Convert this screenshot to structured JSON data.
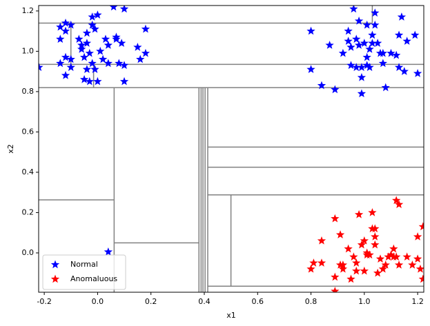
{
  "chart_data": {
    "type": "scatter",
    "xlabel": "x1",
    "ylabel": "x2",
    "xlim": [
      -0.221,
      1.223
    ],
    "ylim": [
      -0.195,
      1.227
    ],
    "xticks": [
      -0.2,
      {
        "value": 0,
        "label": "0.0"
      },
      0.2,
      0.4,
      0.6,
      0.8,
      {
        "value": 1,
        "label": "1.0"
      },
      1.2
    ],
    "yticks": [
      {
        "value": 0,
        "label": "0.0"
      },
      0.2,
      0.4,
      0.6,
      0.8,
      {
        "value": 1,
        "label": "1.0"
      },
      1.2
    ],
    "legend": "lower left",
    "series": [
      {
        "name": "Normal",
        "color": "#0000ff",
        "x": [
          -0.22,
          -0.14,
          -0.12,
          -0.12,
          -0.1,
          -0.14,
          -0.14,
          -0.12,
          -0.1,
          -0.1,
          -0.12,
          -0.07,
          -0.06,
          -0.06,
          -0.05,
          -0.04,
          -0.04,
          -0.03,
          -0.04,
          -0.05,
          -0.03,
          -0.02,
          -0.02,
          -0.01,
          0.0,
          -0.02,
          -0.01,
          0.0,
          0.01,
          0.02,
          0.03,
          0.04,
          0.04,
          0.06,
          0.07,
          0.07,
          0.1,
          0.09,
          0.08,
          0.1,
          0.1,
          0.18,
          0.18,
          0.15,
          0.16,
          0.04,
          0.8,
          0.8,
          0.84,
          0.87,
          0.89,
          0.92,
          0.94,
          0.94,
          0.95,
          0.95,
          0.96,
          0.97,
          0.97,
          0.98,
          0.98,
          0.99,
          0.99,
          0.99,
          1.0,
          1.01,
          1.01,
          1.01,
          1.02,
          1.02,
          1.03,
          1.03,
          1.04,
          1.05,
          1.06,
          1.07,
          1.07,
          1.08,
          1.1,
          1.12,
          1.13,
          1.13,
          1.14,
          1.15,
          1.16,
          1.19,
          1.2,
          1.04
        ],
        "values": [
          0.92,
          1.12,
          1.14,
          1.1,
          1.13,
          1.06,
          0.94,
          0.97,
          0.92,
          0.96,
          0.88,
          1.06,
          1.03,
          1.01,
          0.97,
          1.04,
          1.09,
          0.99,
          0.91,
          0.86,
          0.85,
          1.17,
          1.13,
          1.11,
          1.18,
          0.94,
          0.91,
          0.85,
          1.0,
          0.96,
          1.06,
          1.03,
          0.94,
          1.22,
          1.07,
          1.06,
          1.21,
          1.04,
          0.94,
          0.93,
          0.85,
          1.11,
          0.99,
          1.02,
          0.96,
          0.005,
          1.1,
          0.91,
          0.83,
          1.03,
          0.81,
          0.99,
          1.05,
          1.1,
          1.02,
          0.93,
          1.21,
          0.92,
          1.06,
          1.15,
          1.03,
          0.87,
          0.79,
          0.92,
          1.04,
          0.97,
          1.13,
          0.93,
          1.01,
          0.92,
          1.08,
          1.04,
          1.19,
          1.04,
          0.99,
          0.99,
          0.94,
          0.82,
          0.99,
          0.98,
          0.92,
          1.08,
          1.17,
          0.9,
          1.05,
          1.08,
          0.89,
          1.13
        ]
      },
      {
        "name": "Anomaluous",
        "color": "#ff0000",
        "x": [
          0.8,
          0.81,
          0.84,
          0.84,
          0.89,
          0.89,
          0.89,
          0.91,
          0.91,
          0.92,
          0.92,
          0.94,
          0.95,
          0.96,
          0.97,
          0.97,
          0.98,
          0.99,
          1.0,
          1.0,
          1.01,
          1.01,
          1.02,
          1.03,
          1.03,
          1.04,
          1.04,
          1.04,
          1.05,
          1.06,
          1.07,
          1.08,
          1.09,
          1.11,
          1.11,
          1.12,
          1.13,
          1.13,
          1.12,
          1.16,
          1.18,
          1.2,
          1.2,
          1.21,
          1.22,
          1.22,
          1.1
        ],
        "values": [
          -0.08,
          -0.05,
          -0.05,
          0.06,
          0.17,
          -0.12,
          -0.19,
          0.09,
          -0.06,
          -0.08,
          -0.06,
          0.02,
          -0.13,
          -0.02,
          -0.05,
          -0.09,
          0.19,
          0.04,
          -0.09,
          0.06,
          0.0,
          -0.01,
          -0.01,
          0.12,
          0.2,
          0.12,
          0.08,
          0.04,
          -0.1,
          -0.03,
          -0.08,
          -0.06,
          -0.02,
          0.02,
          -0.02,
          0.26,
          0.24,
          -0.06,
          -0.02,
          -0.02,
          -0.06,
          0.08,
          -0.03,
          -0.08,
          -0.13,
          0.13,
          -0.01
        ]
      }
    ],
    "segments": [
      {
        "x": [
          -0.221,
          1.223
        ],
        "y": [
          0.82,
          0.82
        ]
      },
      {
        "x": [
          -0.221,
          1.03
        ],
        "y": [
          1.14,
          1.14
        ]
      },
      {
        "x": [
          -0.221,
          1.223
        ],
        "y": [
          0.935,
          0.935
        ]
      },
      {
        "x": [
          1.03,
          1.03
        ],
        "y": [
          1.14,
          1.227
        ]
      },
      {
        "x": [
          -0.1,
          -0.1
        ],
        "y": [
          1.14,
          0.935
        ]
      },
      {
        "x": [
          -0.015,
          -0.015
        ],
        "y": [
          0.935,
          0.82
        ]
      },
      {
        "x": [
          0.062,
          0.062
        ],
        "y": [
          0.82,
          -0.195
        ]
      },
      {
        "x": [
          -0.221,
          0.062
        ],
        "y": [
          0.263,
          0.263
        ]
      },
      {
        "x": [
          0.38,
          0.38
        ],
        "y": [
          0.82,
          -0.195
        ]
      },
      {
        "x": [
          0.388,
          0.388
        ],
        "y": [
          0.82,
          -0.195
        ]
      },
      {
        "x": [
          0.395,
          0.395
        ],
        "y": [
          0.82,
          -0.195
        ]
      },
      {
        "x": [
          0.403,
          0.403
        ],
        "y": [
          0.82,
          -0.195
        ]
      },
      {
        "x": [
          0.062,
          0.38
        ],
        "y": [
          0.05,
          0.05
        ]
      },
      {
        "x": [
          0.413,
          0.413
        ],
        "y": [
          0.82,
          -0.195
        ]
      },
      {
        "x": [
          0.413,
          1.223
        ],
        "y": [
          0.525,
          0.525
        ]
      },
      {
        "x": [
          0.413,
          1.223
        ],
        "y": [
          0.425,
          0.425
        ]
      },
      {
        "x": [
          0.413,
          1.223
        ],
        "y": [
          0.288,
          0.288
        ]
      },
      {
        "x": [
          0.5,
          0.5
        ],
        "y": [
          0.288,
          -0.165
        ]
      },
      {
        "x": [
          0.413,
          1.223
        ],
        "y": [
          -0.165,
          -0.165
        ]
      }
    ]
  }
}
